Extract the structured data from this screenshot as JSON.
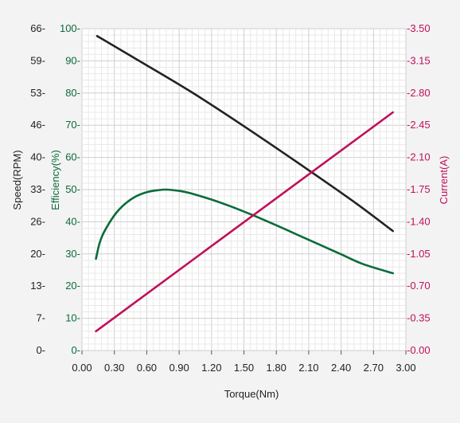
{
  "chart_data": {
    "type": "line",
    "xlabel": "Torque(Nm)",
    "x_ticks": [
      "0.00",
      "0.30",
      "0.60",
      "0.90",
      "1.20",
      "1.50",
      "1.80",
      "2.10",
      "2.40",
      "2.70",
      "3.00"
    ],
    "xlim": [
      0,
      3.0
    ],
    "grid": true,
    "axes": {
      "speed": {
        "label": "Speed(RPM)",
        "color": "#222222",
        "ticks": [
          "0-",
          "7-",
          "13-",
          "20-",
          "26-",
          "33-",
          "40-",
          "46-",
          "53-",
          "59-",
          "66-"
        ],
        "ylim": [
          0,
          66
        ]
      },
      "efficiency": {
        "label": "Efficiency(%)",
        "color": "#0b6b3a",
        "ticks": [
          "0-",
          "10-",
          "20-",
          "30-",
          "40-",
          "50-",
          "60-",
          "70-",
          "80-",
          "90-",
          "100-"
        ],
        "ylim": [
          0,
          100
        ]
      },
      "current": {
        "label": "Current(A)",
        "color": "#c0105a",
        "ticks": [
          "-0.00",
          "-0.35",
          "-0.70",
          "-1.05",
          "-1.40",
          "-1.75",
          "-2.10",
          "-2.45",
          "-2.80",
          "-3.15",
          "-3.50"
        ],
        "ylim": [
          0,
          3.5
        ]
      }
    },
    "series": [
      {
        "axis": "speed",
        "color": "#222222",
        "x": [
          0.14,
          0.5,
          1.0,
          1.5,
          2.0,
          2.5,
          2.88
        ],
        "y": [
          64.5,
          59.8,
          53.2,
          46.0,
          38.5,
          30.8,
          24.5
        ]
      },
      {
        "axis": "efficiency",
        "color": "#0b6b3a",
        "x": [
          0.13,
          0.16,
          0.2,
          0.3,
          0.4,
          0.5,
          0.6,
          0.7,
          0.78,
          0.9,
          1.0,
          1.2,
          1.4,
          1.6,
          1.8,
          2.0,
          2.2,
          2.4,
          2.6,
          2.88
        ],
        "y": [
          28.5,
          33.0,
          36.5,
          42.0,
          45.6,
          47.9,
          49.2,
          49.8,
          50.0,
          49.6,
          48.9,
          46.9,
          44.5,
          41.8,
          38.9,
          35.9,
          32.9,
          29.9,
          26.9,
          24.0
        ]
      },
      {
        "axis": "current",
        "color": "#c0105a",
        "x": [
          0.13,
          2.88
        ],
        "y": [
          0.21,
          2.59
        ]
      }
    ]
  }
}
